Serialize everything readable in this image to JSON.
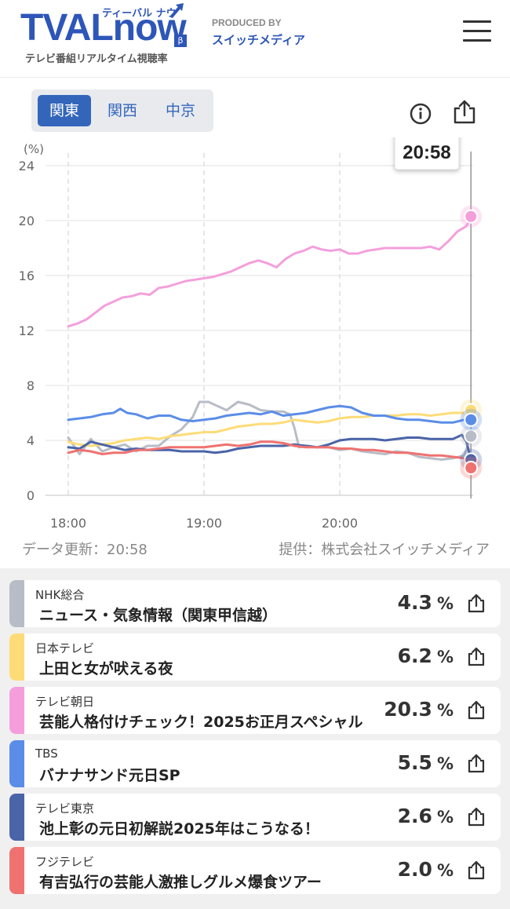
{
  "header": {
    "logo_text": "TVALnow",
    "logo_ruby": "ティーバル ナウ",
    "logo_beta": "β",
    "logo_sub": "テレビ番組リアルタイム視聴率",
    "produced_by": "PRODUCED BY",
    "producer": "スイッチメディア"
  },
  "region_tabs": [
    {
      "label": "関東",
      "active": true
    },
    {
      "label": "関西",
      "active": false
    },
    {
      "label": "中京",
      "active": false
    }
  ],
  "icons": {
    "info": "info-icon",
    "share": "share-icon",
    "menu": "hamburger-menu-icon"
  },
  "tooltip_time": "20:58",
  "chart_data": {
    "type": "line",
    "ylabel": "(%)",
    "ylim": [
      0,
      24
    ],
    "yticks": [
      "0",
      "4",
      "8",
      "12",
      "16",
      "20",
      "24"
    ],
    "xticks": [
      "18:00",
      "19:00",
      "20:00"
    ],
    "x_range_minutes": [
      0,
      178
    ],
    "grid": true,
    "series": [
      {
        "name": "NHK総合",
        "color": "#b8bcc6",
        "points": [
          [
            0,
            4.2
          ],
          [
            5,
            3.0
          ],
          [
            10,
            4.1
          ],
          [
            15,
            3.2
          ],
          [
            20,
            3.5
          ],
          [
            25,
            3.7
          ],
          [
            30,
            3.2
          ],
          [
            35,
            3.6
          ],
          [
            40,
            3.6
          ],
          [
            45,
            4.3
          ],
          [
            50,
            4.8
          ],
          [
            55,
            5.7
          ],
          [
            58,
            6.8
          ],
          [
            62,
            6.8
          ],
          [
            66,
            6.5
          ],
          [
            70,
            6.2
          ],
          [
            75,
            6.8
          ],
          [
            80,
            6.6
          ],
          [
            85,
            6.2
          ],
          [
            90,
            6.1
          ],
          [
            95,
            6.1
          ],
          [
            98,
            5.9
          ],
          [
            100,
            4.9
          ],
          [
            102,
            3.5
          ],
          [
            106,
            3.6
          ],
          [
            110,
            3.5
          ],
          [
            115,
            3.5
          ],
          [
            120,
            3.3
          ],
          [
            125,
            3.4
          ],
          [
            130,
            3.2
          ],
          [
            135,
            3.1
          ],
          [
            140,
            3.0
          ],
          [
            145,
            3.2
          ],
          [
            150,
            3.1
          ],
          [
            155,
            2.8
          ],
          [
            160,
            2.7
          ],
          [
            165,
            2.6
          ],
          [
            170,
            2.7
          ],
          [
            175,
            2.9
          ],
          [
            178,
            4.3
          ]
        ]
      },
      {
        "name": "日本テレビ",
        "color": "#fddc78",
        "points": [
          [
            0,
            3.9
          ],
          [
            5,
            3.7
          ],
          [
            10,
            3.6
          ],
          [
            15,
            3.7
          ],
          [
            20,
            3.8
          ],
          [
            25,
            4.0
          ],
          [
            30,
            4.1
          ],
          [
            35,
            4.2
          ],
          [
            40,
            4.1
          ],
          [
            45,
            4.3
          ],
          [
            50,
            4.4
          ],
          [
            55,
            4.5
          ],
          [
            60,
            4.6
          ],
          [
            65,
            4.6
          ],
          [
            70,
            4.8
          ],
          [
            75,
            5.0
          ],
          [
            80,
            5.1
          ],
          [
            85,
            5.2
          ],
          [
            90,
            5.2
          ],
          [
            95,
            5.3
          ],
          [
            100,
            5.5
          ],
          [
            105,
            5.4
          ],
          [
            110,
            5.3
          ],
          [
            115,
            5.4
          ],
          [
            120,
            5.6
          ],
          [
            125,
            5.7
          ],
          [
            130,
            5.7
          ],
          [
            135,
            5.8
          ],
          [
            140,
            5.8
          ],
          [
            145,
            5.8
          ],
          [
            150,
            5.9
          ],
          [
            155,
            5.9
          ],
          [
            160,
            5.8
          ],
          [
            165,
            5.9
          ],
          [
            170,
            6.0
          ],
          [
            175,
            6.0
          ],
          [
            178,
            6.2
          ]
        ]
      },
      {
        "name": "テレビ朝日",
        "color": "#f49fdc",
        "points": [
          [
            0,
            12.3
          ],
          [
            4,
            12.5
          ],
          [
            8,
            12.8
          ],
          [
            12,
            13.3
          ],
          [
            16,
            13.8
          ],
          [
            20,
            14.1
          ],
          [
            24,
            14.4
          ],
          [
            28,
            14.5
          ],
          [
            32,
            14.7
          ],
          [
            36,
            14.6
          ],
          [
            40,
            15.1
          ],
          [
            44,
            15.2
          ],
          [
            48,
            15.4
          ],
          [
            52,
            15.6
          ],
          [
            56,
            15.7
          ],
          [
            60,
            15.8
          ],
          [
            64,
            15.9
          ],
          [
            68,
            16.1
          ],
          [
            72,
            16.3
          ],
          [
            76,
            16.6
          ],
          [
            80,
            16.9
          ],
          [
            84,
            17.1
          ],
          [
            88,
            16.9
          ],
          [
            92,
            16.6
          ],
          [
            96,
            17.2
          ],
          [
            100,
            17.6
          ],
          [
            104,
            17.8
          ],
          [
            108,
            18.1
          ],
          [
            112,
            17.9
          ],
          [
            116,
            17.8
          ],
          [
            120,
            17.9
          ],
          [
            124,
            17.6
          ],
          [
            128,
            17.6
          ],
          [
            132,
            17.8
          ],
          [
            136,
            17.9
          ],
          [
            140,
            18.0
          ],
          [
            144,
            18.0
          ],
          [
            148,
            18.0
          ],
          [
            152,
            18.0
          ],
          [
            156,
            18.0
          ],
          [
            160,
            18.1
          ],
          [
            164,
            17.9
          ],
          [
            168,
            18.5
          ],
          [
            172,
            19.2
          ],
          [
            176,
            19.6
          ],
          [
            178,
            20.3
          ]
        ]
      },
      {
        "name": "TBS",
        "color": "#5b8de8",
        "points": [
          [
            0,
            5.5
          ],
          [
            5,
            5.6
          ],
          [
            10,
            5.7
          ],
          [
            15,
            5.9
          ],
          [
            20,
            6.0
          ],
          [
            23,
            6.3
          ],
          [
            26,
            6.0
          ],
          [
            30,
            5.9
          ],
          [
            35,
            5.6
          ],
          [
            40,
            5.8
          ],
          [
            45,
            5.8
          ],
          [
            50,
            5.5
          ],
          [
            55,
            5.4
          ],
          [
            60,
            5.5
          ],
          [
            65,
            5.6
          ],
          [
            70,
            5.8
          ],
          [
            75,
            5.9
          ],
          [
            80,
            6.0
          ],
          [
            85,
            5.9
          ],
          [
            90,
            6.1
          ],
          [
            95,
            5.8
          ],
          [
            100,
            5.9
          ],
          [
            105,
            6.0
          ],
          [
            110,
            6.2
          ],
          [
            115,
            6.4
          ],
          [
            120,
            6.5
          ],
          [
            125,
            6.4
          ],
          [
            130,
            6.0
          ],
          [
            135,
            5.8
          ],
          [
            140,
            5.8
          ],
          [
            145,
            5.6
          ],
          [
            150,
            5.5
          ],
          [
            155,
            5.5
          ],
          [
            160,
            5.4
          ],
          [
            165,
            5.3
          ],
          [
            170,
            5.3
          ],
          [
            175,
            5.5
          ],
          [
            178,
            5.5
          ]
        ]
      },
      {
        "name": "テレビ東京",
        "color": "#4a64a8",
        "points": [
          [
            0,
            3.5
          ],
          [
            5,
            3.4
          ],
          [
            10,
            3.9
          ],
          [
            15,
            3.7
          ],
          [
            20,
            3.5
          ],
          [
            25,
            3.3
          ],
          [
            30,
            3.4
          ],
          [
            35,
            3.3
          ],
          [
            40,
            3.3
          ],
          [
            45,
            3.3
          ],
          [
            50,
            3.2
          ],
          [
            55,
            3.2
          ],
          [
            60,
            3.2
          ],
          [
            65,
            3.1
          ],
          [
            70,
            3.2
          ],
          [
            75,
            3.4
          ],
          [
            80,
            3.5
          ],
          [
            85,
            3.6
          ],
          [
            90,
            3.6
          ],
          [
            95,
            3.6
          ],
          [
            100,
            3.7
          ],
          [
            105,
            3.6
          ],
          [
            110,
            3.5
          ],
          [
            115,
            3.7
          ],
          [
            120,
            4.0
          ],
          [
            125,
            4.1
          ],
          [
            130,
            4.1
          ],
          [
            135,
            4.1
          ],
          [
            140,
            4.0
          ],
          [
            145,
            4.1
          ],
          [
            150,
            4.2
          ],
          [
            155,
            4.2
          ],
          [
            160,
            4.1
          ],
          [
            165,
            4.1
          ],
          [
            170,
            4.1
          ],
          [
            174,
            4.4
          ],
          [
            176,
            3.9
          ],
          [
            178,
            2.6
          ]
        ]
      },
      {
        "name": "フジテレビ",
        "color": "#ef7270",
        "points": [
          [
            0,
            3.1
          ],
          [
            5,
            3.3
          ],
          [
            10,
            3.2
          ],
          [
            15,
            3.0
          ],
          [
            20,
            3.1
          ],
          [
            25,
            3.1
          ],
          [
            30,
            3.3
          ],
          [
            35,
            3.3
          ],
          [
            40,
            3.4
          ],
          [
            45,
            3.5
          ],
          [
            50,
            3.5
          ],
          [
            55,
            3.5
          ],
          [
            60,
            3.5
          ],
          [
            65,
            3.6
          ],
          [
            70,
            3.7
          ],
          [
            75,
            3.6
          ],
          [
            80,
            3.7
          ],
          [
            85,
            3.9
          ],
          [
            90,
            3.9
          ],
          [
            95,
            3.8
          ],
          [
            100,
            3.6
          ],
          [
            105,
            3.5
          ],
          [
            110,
            3.5
          ],
          [
            115,
            3.5
          ],
          [
            120,
            3.4
          ],
          [
            125,
            3.4
          ],
          [
            130,
            3.3
          ],
          [
            135,
            3.3
          ],
          [
            140,
            3.2
          ],
          [
            145,
            3.1
          ],
          [
            150,
            3.1
          ],
          [
            155,
            3.0
          ],
          [
            160,
            2.9
          ],
          [
            165,
            2.9
          ],
          [
            170,
            2.8
          ],
          [
            175,
            2.7
          ],
          [
            178,
            2.0
          ]
        ]
      }
    ]
  },
  "footer": {
    "updated": "データ更新：20:58",
    "provider": "提供：株式会社スイッチメディア"
  },
  "programs": [
    {
      "station": "NHK総合",
      "title": "ニュース・気象情報（関東甲信越）",
      "rating": "4.3",
      "unit": "%",
      "color": "#b8bcc6"
    },
    {
      "station": "日本テレビ",
      "title": "上田と女が吠える夜",
      "rating": "6.2",
      "unit": "%",
      "color": "#fddc78"
    },
    {
      "station": "テレビ朝日",
      "title": "芸能人格付けチェック！2025お正月スペシャル",
      "rating": "20.3",
      "unit": "%",
      "color": "#f49fdc"
    },
    {
      "station": "TBS",
      "title": "バナナサンド元日SP",
      "rating": "5.5",
      "unit": "%",
      "color": "#5b8de8"
    },
    {
      "station": "テレビ東京",
      "title": "池上彰の元日初解説2025年はこうなる！",
      "rating": "2.6",
      "unit": "%",
      "color": "#4a64a8"
    },
    {
      "station": "フジテレビ",
      "title": "有吉弘行の芸能人激推しグルメ爆食ツアー",
      "rating": "2.0",
      "unit": "%",
      "color": "#ef7270"
    }
  ]
}
